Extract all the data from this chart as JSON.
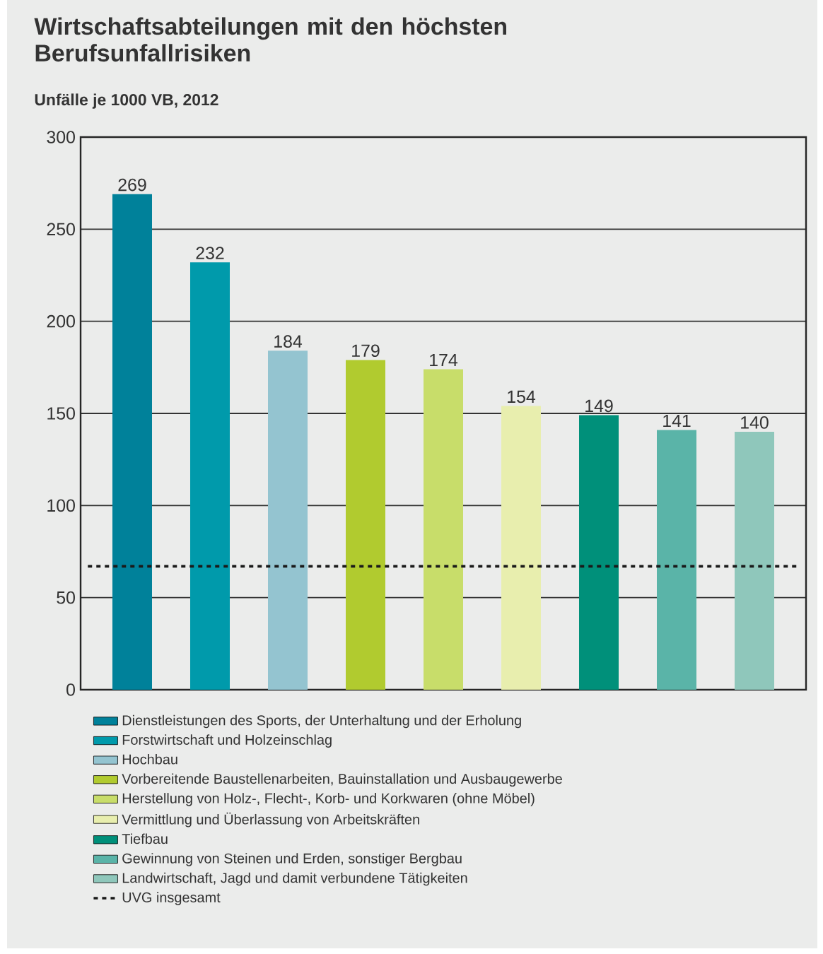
{
  "chart_data": {
    "type": "bar",
    "title": "Wirtschaftsabteilungen mit den höchsten Berufsunfallrisiken",
    "subtitle": "Unfälle je 1000 VB, 2012",
    "categories": [
      null
    ],
    "series": [
      {
        "name": "Dienstleistungen des Sports, der Unterhaltung und der Erholung",
        "color": "#00819a",
        "values": [
          269
        ]
      },
      {
        "name": "Forstwirtschaft und Holzeinschlag",
        "color": "#009aab",
        "values": [
          232
        ]
      },
      {
        "name": "Hochbau",
        "color": "#94c4d0",
        "values": [
          184
        ]
      },
      {
        "name": "Vorbereitende Baustellenarbeiten, Bauinstallation und Ausbaugewerbe",
        "color": "#b1cb2f",
        "values": [
          179
        ]
      },
      {
        "name": "Herstellung von Holz-, Flecht-, Korb- und Korkwaren (ohne Möbel)",
        "color": "#c8dd6a",
        "values": [
          174
        ]
      },
      {
        "name": "Vermittlung und Überlassung von Arbeitskräften",
        "color": "#e8eeae",
        "values": [
          154
        ]
      },
      {
        "name": "Tiefbau",
        "color": "#00907a",
        "values": [
          149
        ]
      },
      {
        "name": "Gewinnung von Steinen und Erden, sonstiger Bergbau",
        "color": "#5ab4a8",
        "values": [
          141
        ]
      },
      {
        "name": "Landwirtschaft, Jagd und damit verbundene Tätigkeiten",
        "color": "#8fc7bb",
        "values": [
          140
        ]
      }
    ],
    "ylim": [
      0,
      300
    ],
    "yticks": [
      0,
      50,
      100,
      150,
      200,
      250,
      300
    ],
    "grid": "y",
    "data_labels": true,
    "legend": "bottom",
    "ref_lines": [
      {
        "axis": "y",
        "value": 67,
        "label": "UVG insgesamt",
        "line_style": "dashed",
        "color": "#1a1a1a"
      }
    ]
  }
}
